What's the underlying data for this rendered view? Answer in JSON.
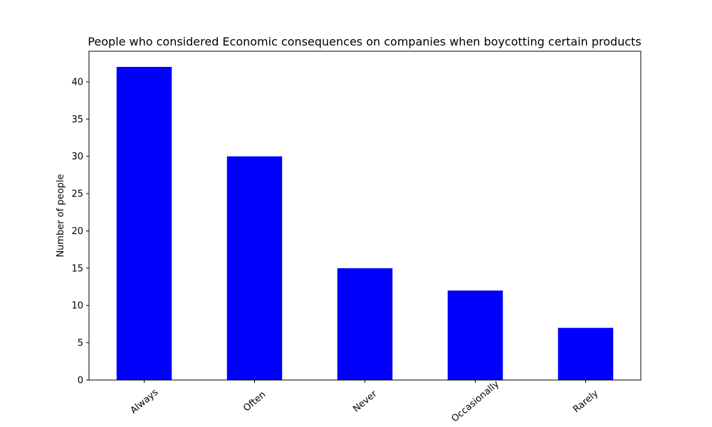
{
  "chart_data": {
    "type": "bar",
    "title": "People who considered Economic consequences on companies when boycotting certain products",
    "xlabel": "",
    "ylabel": "Number of people",
    "categories": [
      "Always",
      "Often",
      "Never",
      "Occasionally",
      "Rarely"
    ],
    "values": [
      42,
      30,
      15,
      12,
      7
    ],
    "ylim": [
      0,
      44.1
    ],
    "yticks": [
      "0",
      "5",
      "10",
      "15",
      "20",
      "25",
      "30",
      "35",
      "40"
    ],
    "bar_color": "#0000ff",
    "grid": false,
    "legend": "none"
  }
}
